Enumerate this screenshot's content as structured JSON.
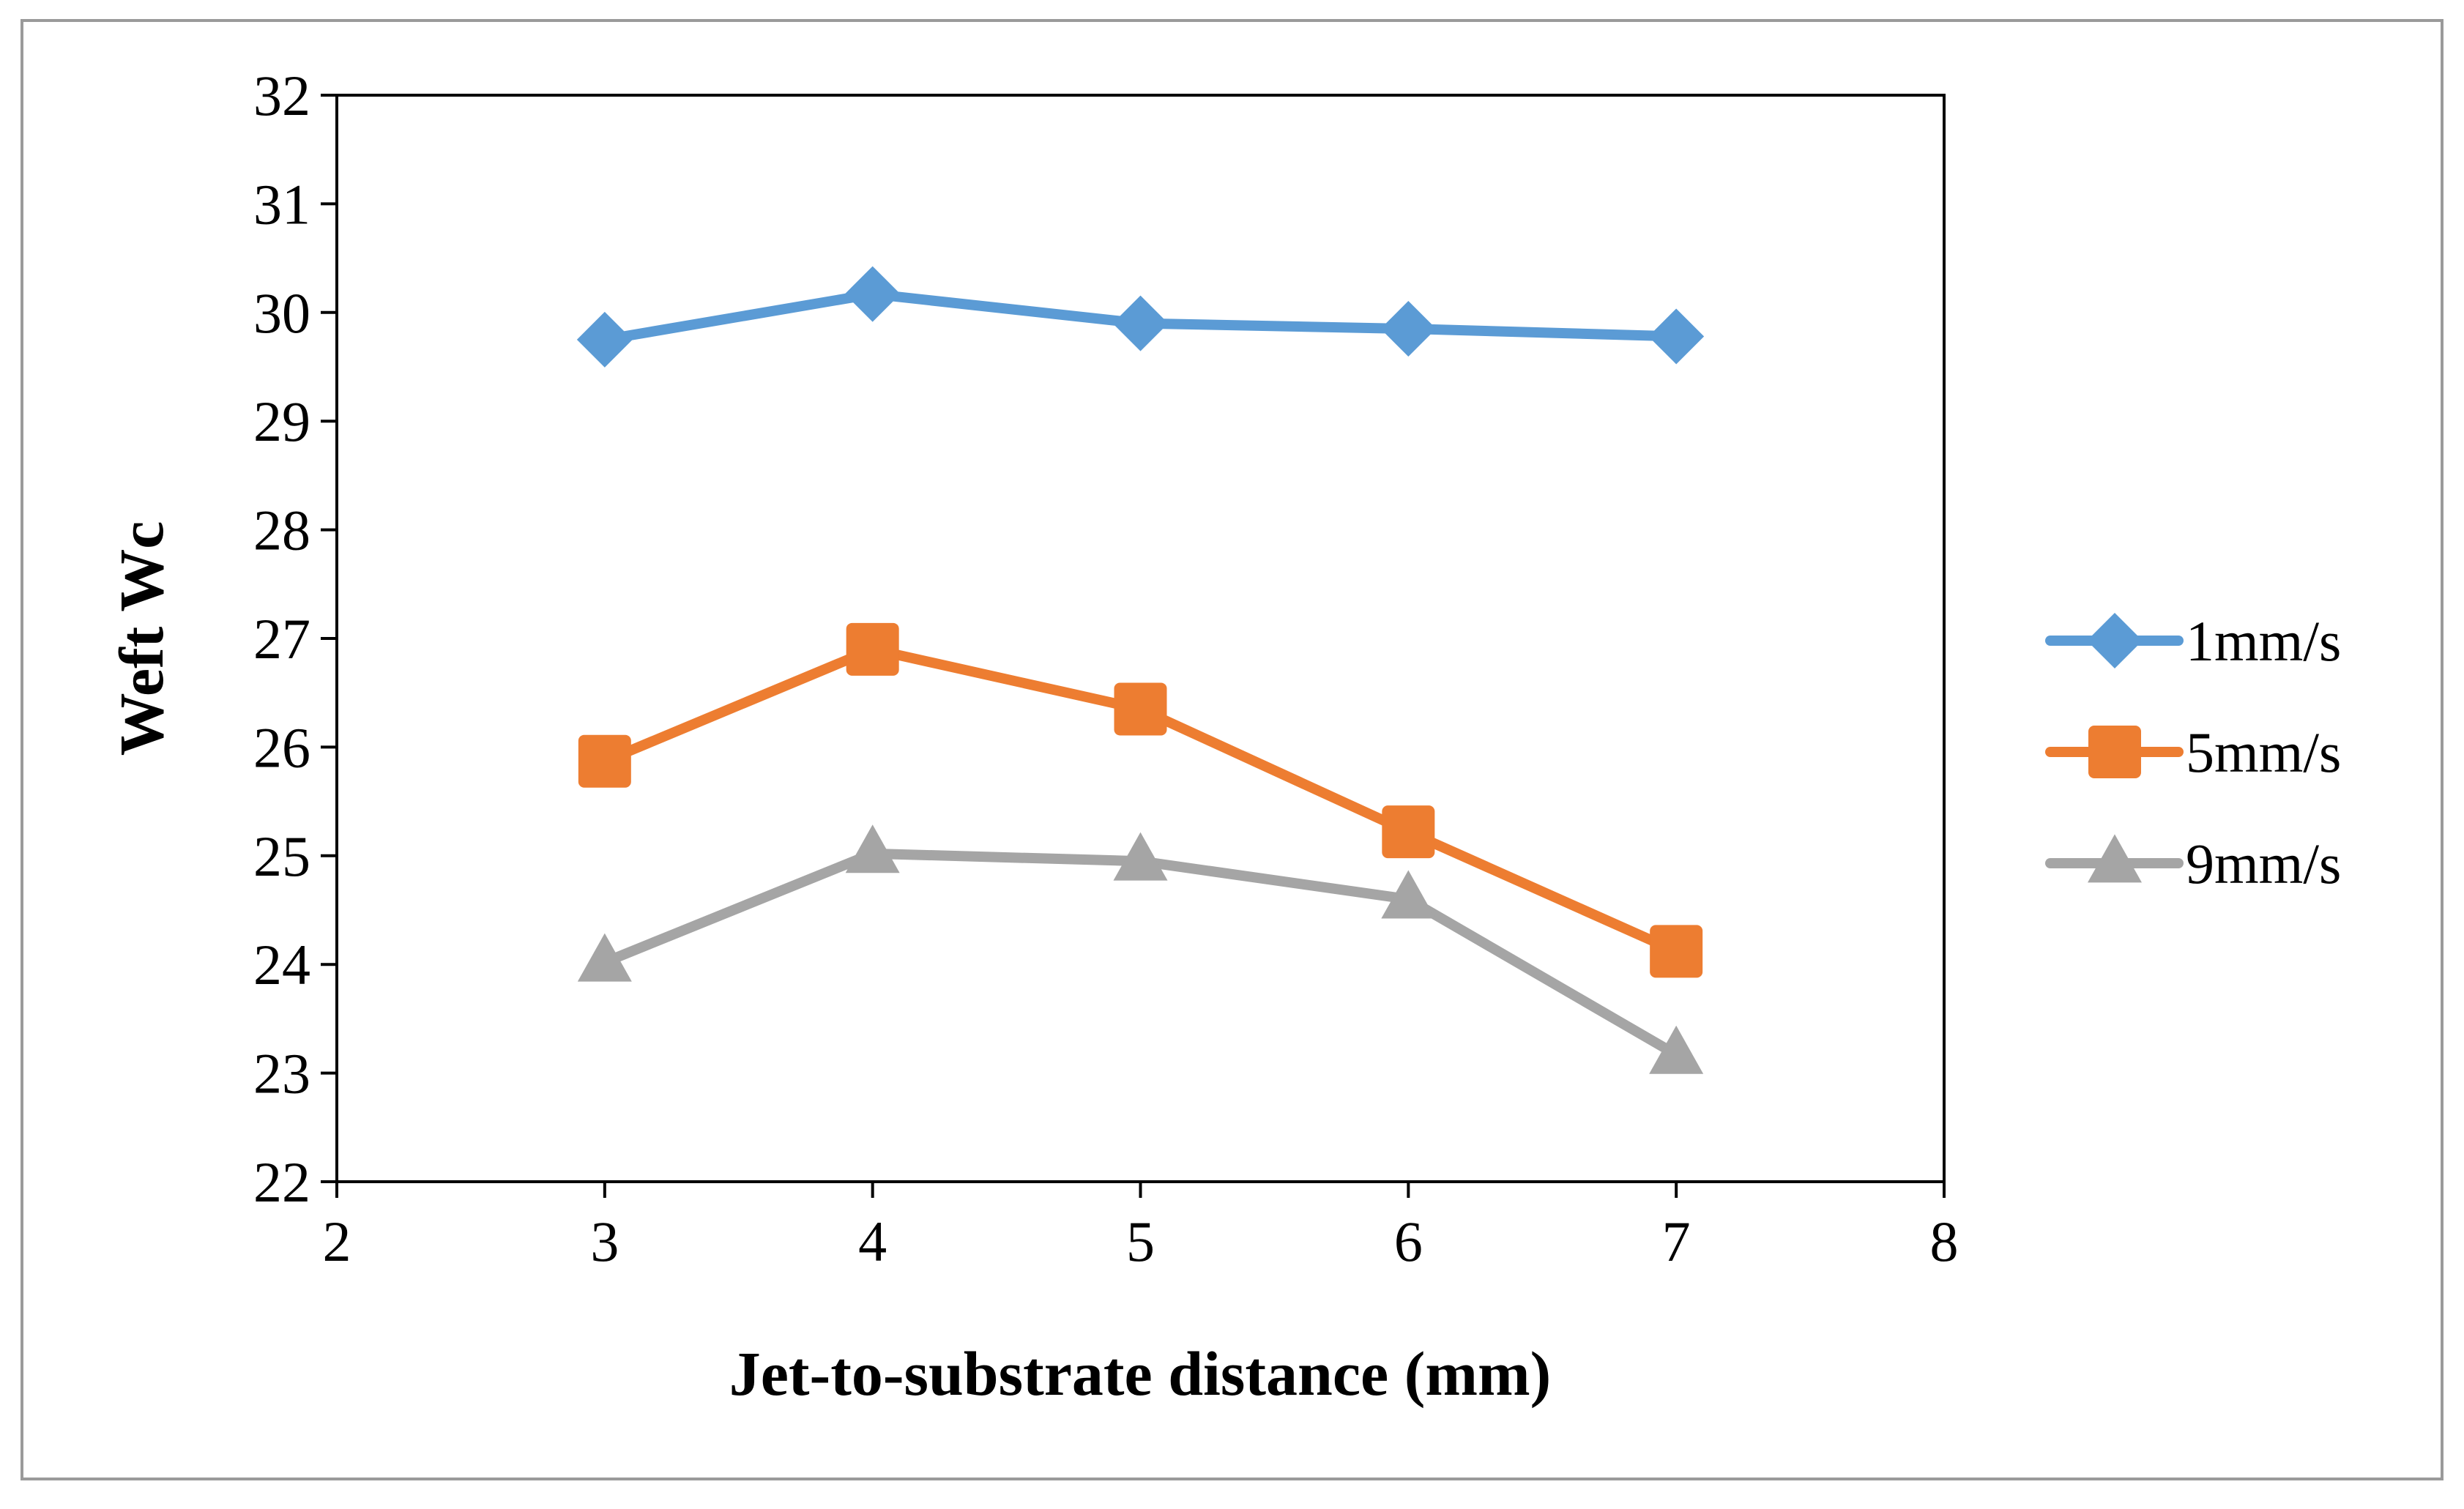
{
  "chart_data": {
    "type": "line",
    "title": "",
    "xlabel": "Jet-to-substrate distance (mm)",
    "ylabel": "Weft Wc",
    "xlim": [
      2,
      8
    ],
    "ylim": [
      22,
      32
    ],
    "x_ticks": [
      2,
      3,
      4,
      5,
      6,
      7,
      8
    ],
    "y_ticks": [
      22,
      23,
      24,
      25,
      26,
      27,
      28,
      29,
      30,
      31,
      32
    ],
    "grid": false,
    "legend_position": "right",
    "x": [
      3,
      4,
      5,
      6,
      7
    ],
    "series": [
      {
        "name": "1mm/s",
        "marker": "diamond",
        "color": "#5B9BD5",
        "values": [
          29.75,
          30.17,
          29.9,
          29.85,
          29.78
        ]
      },
      {
        "name": "5mm/s",
        "marker": "square",
        "color": "#ED7D31",
        "values": [
          25.87,
          26.9,
          26.35,
          25.22,
          24.12
        ]
      },
      {
        "name": "9mm/s",
        "marker": "triangle",
        "color": "#A5A5A5",
        "values": [
          24.02,
          25.02,
          24.95,
          24.6,
          23.17
        ]
      }
    ]
  }
}
